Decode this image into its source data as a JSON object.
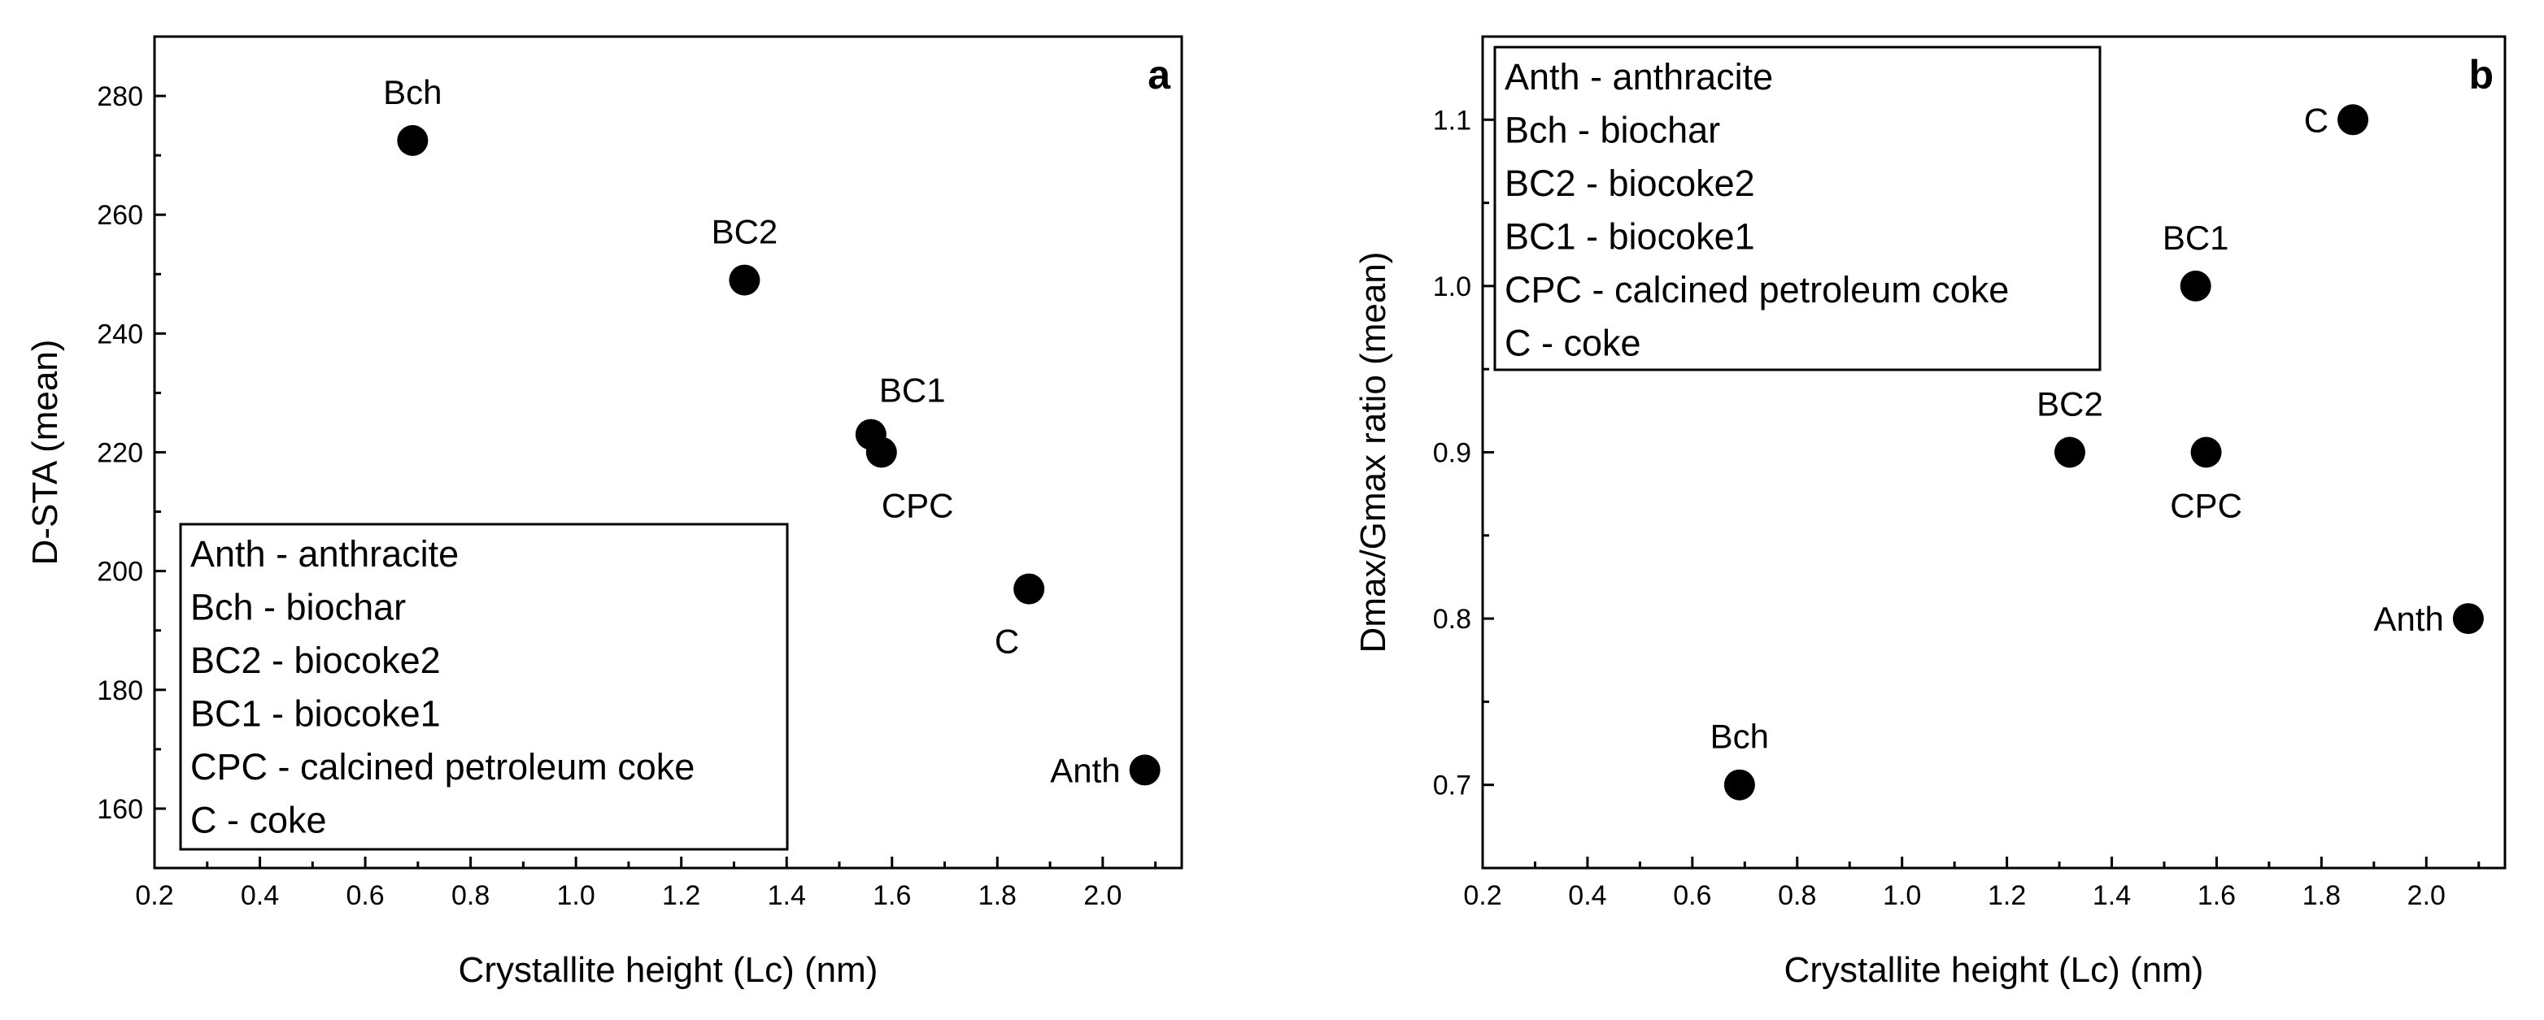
{
  "chart_data": [
    {
      "type": "scatter",
      "panel_label": "a",
      "xlabel": "Crystallite height (Lc) (nm)",
      "ylabel": "D-STA (mean)",
      "xlim": [
        0.2,
        2.15
      ],
      "ylim": [
        150,
        290
      ],
      "xticks": [
        0.2,
        0.4,
        0.6,
        0.8,
        1.0,
        1.2,
        1.4,
        1.6,
        1.8,
        2.0
      ],
      "xtick_labels": [
        "0.2",
        "0.4",
        "0.6",
        "0.8",
        "1.0",
        "1.2",
        "1.4",
        "1.6",
        "1.8",
        "2.0"
      ],
      "yticks": [
        160,
        180,
        200,
        220,
        240,
        260,
        280
      ],
      "ytick_labels": [
        "160",
        "180",
        "200",
        "220",
        "240",
        "260",
        "280"
      ],
      "points": [
        {
          "label": "Bch",
          "x": 0.69,
          "y": 272.5,
          "label_pos": "above"
        },
        {
          "label": "BC2",
          "x": 1.32,
          "y": 249,
          "label_pos": "above"
        },
        {
          "label": "BC1",
          "x": 1.56,
          "y": 223,
          "label_pos": "above-right"
        },
        {
          "label": "CPC",
          "x": 1.58,
          "y": 220,
          "label_pos": "below-right"
        },
        {
          "label": "C",
          "x": 1.86,
          "y": 197,
          "label_pos": "below-left"
        },
        {
          "label": "Anth",
          "x": 2.08,
          "y": 166.5,
          "label_pos": "left"
        }
      ],
      "legend_position": "bottom-left",
      "legend": [
        "Anth - anthracite",
        "Bch - biochar",
        "BC2 - biocoke2",
        "BC1 - biocoke1",
        "CPC - calcined petroleum coke",
        "C - coke"
      ]
    },
    {
      "type": "scatter",
      "panel_label": "b",
      "xlabel": "Crystallite height (Lc) (nm)",
      "ylabel": "Dmax/Gmax ratio (mean)",
      "xlim": [
        0.2,
        2.15
      ],
      "ylim": [
        0.65,
        1.15
      ],
      "xticks": [
        0.2,
        0.4,
        0.6,
        0.8,
        1.0,
        1.2,
        1.4,
        1.6,
        1.8,
        2.0
      ],
      "xtick_labels": [
        "0.2",
        "0.4",
        "0.6",
        "0.8",
        "1.0",
        "1.2",
        "1.4",
        "1.6",
        "1.8",
        "2.0"
      ],
      "yticks": [
        0.7,
        0.8,
        0.9,
        1.0,
        1.1
      ],
      "ytick_labels": [
        "0.7",
        "0.8",
        "0.9",
        "1.0",
        "1.1"
      ],
      "points": [
        {
          "label": "Bch",
          "x": 0.69,
          "y": 0.7,
          "label_pos": "above"
        },
        {
          "label": "BC2",
          "x": 1.32,
          "y": 0.9,
          "label_pos": "above"
        },
        {
          "label": "BC1",
          "x": 1.56,
          "y": 1.0,
          "label_pos": "above"
        },
        {
          "label": "CPC",
          "x": 1.58,
          "y": 0.9,
          "label_pos": "below"
        },
        {
          "label": "C",
          "x": 1.86,
          "y": 1.1,
          "label_pos": "left"
        },
        {
          "label": "Anth",
          "x": 2.08,
          "y": 0.8,
          "label_pos": "left"
        }
      ],
      "legend_position": "top-left",
      "legend": [
        "Anth - anthracite",
        "Bch - biochar",
        "BC2 - biocoke2",
        "BC1 - biocoke1",
        "CPC - calcined petroleum coke",
        "C - coke"
      ]
    }
  ]
}
